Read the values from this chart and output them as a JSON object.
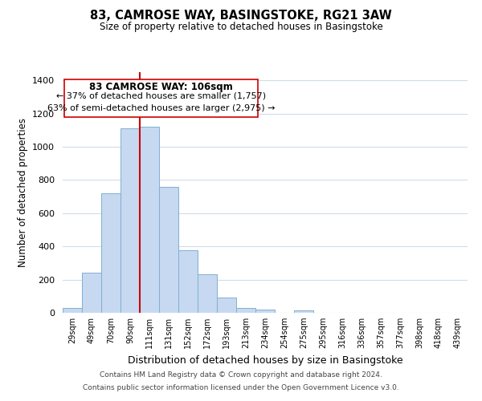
{
  "title": "83, CAMROSE WAY, BASINGSTOKE, RG21 3AW",
  "subtitle": "Size of property relative to detached houses in Basingstoke",
  "xlabel": "Distribution of detached houses by size in Basingstoke",
  "ylabel": "Number of detached properties",
  "bar_labels": [
    "29sqm",
    "49sqm",
    "70sqm",
    "90sqm",
    "111sqm",
    "131sqm",
    "152sqm",
    "172sqm",
    "193sqm",
    "213sqm",
    "234sqm",
    "254sqm",
    "275sqm",
    "295sqm",
    "316sqm",
    "336sqm",
    "357sqm",
    "377sqm",
    "398sqm",
    "418sqm",
    "439sqm"
  ],
  "bar_values": [
    30,
    240,
    720,
    1110,
    1120,
    760,
    375,
    230,
    90,
    30,
    20,
    0,
    15,
    0,
    0,
    0,
    0,
    0,
    0,
    0,
    0
  ],
  "bar_color": "#c6d9f0",
  "bar_edge_color": "#7fafd4",
  "vline_x_index": 4,
  "vline_color": "#cc0000",
  "ylim": [
    0,
    1450
  ],
  "yticks": [
    0,
    200,
    400,
    600,
    800,
    1000,
    1200,
    1400
  ],
  "annotation_title": "83 CAMROSE WAY: 106sqm",
  "annotation_line1": "← 37% of detached houses are smaller (1,757)",
  "annotation_line2": "63% of semi-detached houses are larger (2,975) →",
  "annotation_box_color": "#ffffff",
  "annotation_box_edge": "#cc0000",
  "footer1": "Contains HM Land Registry data © Crown copyright and database right 2024.",
  "footer2": "Contains public sector information licensed under the Open Government Licence v3.0.",
  "background_color": "#ffffff",
  "grid_color": "#d0dce8"
}
